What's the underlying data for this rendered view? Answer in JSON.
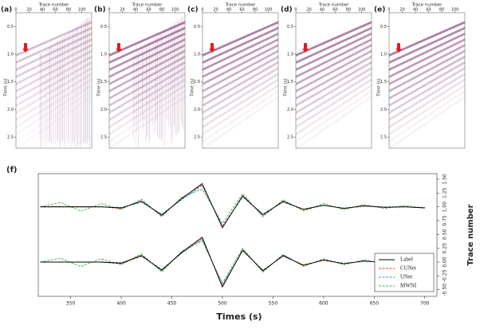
{
  "panels": {
    "labels": [
      "(a)",
      "(b)",
      "(c)",
      "(d)",
      "(e)"
    ],
    "xlabel": "Trace number",
    "ylabel": "Time (s)",
    "xlim": [
      0,
      115
    ],
    "xticks": [
      0,
      20,
      40,
      60,
      80,
      100
    ],
    "ylim": [
      0.25,
      2.7
    ],
    "yticks": [
      0.5,
      {
        "value": 1,
        "label": "1.0"
      },
      1.5,
      {
        "value": 2,
        "label": "2.0"
      },
      2.5
    ]
  },
  "chart_data": {
    "type": "line",
    "panel_label": "(f)",
    "xlabel": "Times (s)",
    "ylabel": "Trace number",
    "xlim": [
      318,
      712
    ],
    "xticks": [
      350,
      400,
      450,
      500,
      550,
      600,
      650,
      700
    ],
    "ylim": [
      -0.62,
      1.6
    ],
    "yticks": [
      {
        "value": -0.5,
        "label": "-0.50"
      },
      {
        "value": -0.25,
        "label": "-0.25"
      },
      {
        "value": 0,
        "label": "0.00"
      },
      {
        "value": 0.25,
        "label": "0.25"
      },
      {
        "value": 0.5,
        "label": "0.50"
      },
      {
        "value": 0.75,
        "label": "0.75"
      },
      {
        "value": 1,
        "label": "1.00"
      },
      {
        "value": 1.25,
        "label": "1.25"
      },
      {
        "value": 1.5,
        "label": "1.50"
      }
    ],
    "legend": "lower right",
    "x": [
      320,
      340,
      360,
      380,
      400,
      420,
      440,
      460,
      480,
      500,
      520,
      540,
      560,
      580,
      600,
      620,
      640,
      660,
      680,
      700
    ],
    "series": [
      {
        "name": "Label",
        "color": "#000000",
        "style": "solid",
        "upper": [
          1.0,
          1.0,
          1.0,
          1.0,
          0.98,
          1.1,
          0.85,
          1.15,
          1.42,
          0.62,
          1.2,
          0.85,
          1.1,
          0.95,
          1.03,
          0.97,
          1.02,
          0.99,
          1.0,
          0.98
        ],
        "lower": [
          0.0,
          0.0,
          0.0,
          0.0,
          -0.02,
          0.12,
          -0.15,
          0.18,
          0.45,
          -0.45,
          0.22,
          -0.16,
          0.12,
          -0.06,
          0.04,
          -0.03,
          0.02,
          -0.01,
          0.0,
          -0.02
        ]
      },
      {
        "name": "CUNet",
        "color": "#e8322d",
        "style": "dashed",
        "upper": [
          1.0,
          1.0,
          1.0,
          1.0,
          0.97,
          1.11,
          0.84,
          1.16,
          1.4,
          0.64,
          1.19,
          0.86,
          1.09,
          0.96,
          1.03,
          0.97,
          1.01,
          0.99,
          1.0,
          0.98
        ],
        "lower": [
          0.0,
          0.0,
          0.0,
          0.0,
          -0.03,
          0.11,
          -0.14,
          0.17,
          0.43,
          -0.43,
          0.21,
          -0.15,
          0.11,
          -0.05,
          0.03,
          -0.03,
          0.02,
          -0.01,
          0.0,
          -0.02
        ]
      },
      {
        "name": "UNet",
        "color": "#3a9ad9",
        "style": "dashed",
        "upper": [
          1.0,
          1.0,
          1.0,
          1.0,
          0.99,
          1.08,
          0.87,
          1.13,
          1.38,
          0.66,
          1.17,
          0.88,
          1.08,
          0.96,
          1.02,
          0.98,
          1.01,
          1.0,
          1.0,
          0.99
        ],
        "lower": [
          0.0,
          0.0,
          0.0,
          0.0,
          -0.01,
          0.1,
          -0.13,
          0.16,
          0.41,
          -0.41,
          0.2,
          -0.14,
          0.1,
          -0.05,
          0.03,
          -0.02,
          0.01,
          0.0,
          0.0,
          -0.01
        ]
      },
      {
        "name": "MWNI",
        "color": "#3cb043",
        "style": "dashed",
        "upper": [
          1.0,
          1.08,
          0.92,
          1.06,
          0.95,
          1.14,
          0.82,
          1.18,
          1.32,
          0.7,
          1.24,
          0.82,
          1.13,
          0.92,
          1.06,
          0.95,
          1.04,
          0.97,
          1.02,
          0.98
        ],
        "lower": [
          0.0,
          0.07,
          -0.08,
          0.06,
          -0.05,
          0.15,
          -0.18,
          0.2,
          0.38,
          -0.38,
          0.25,
          -0.18,
          0.14,
          -0.08,
          0.06,
          -0.05,
          0.04,
          -0.03,
          0.02,
          -0.02
        ]
      }
    ]
  }
}
